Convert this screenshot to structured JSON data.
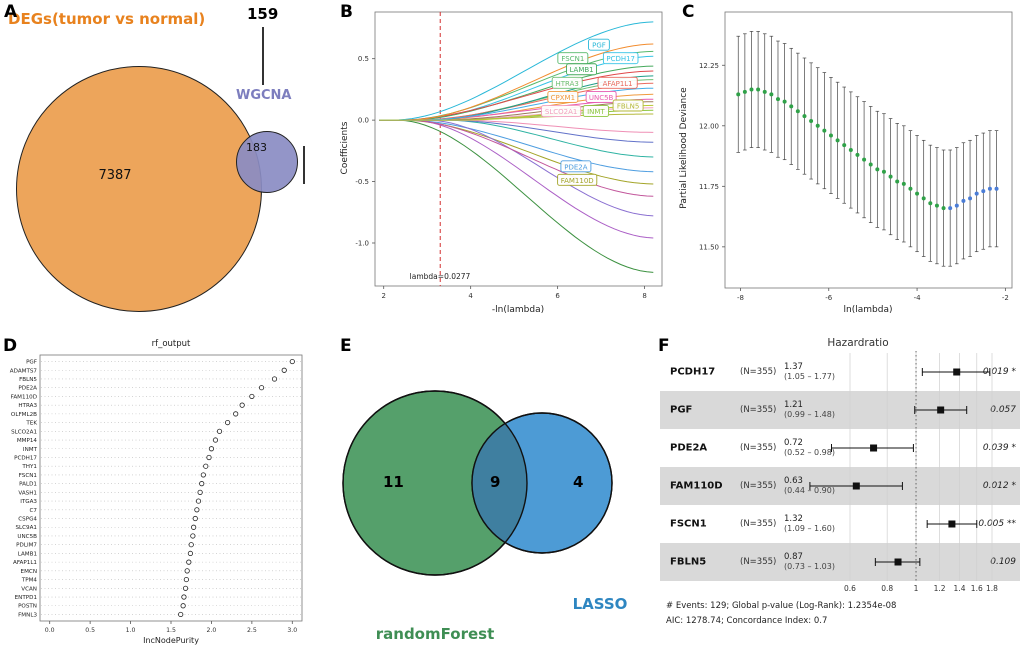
{
  "panel_labels": [
    "A",
    "B",
    "C",
    "D",
    "E",
    "F"
  ],
  "chart_data": [
    {
      "id": "A",
      "type": "venn",
      "title": "DEGs(tumor vs normal)",
      "sets": [
        {
          "label": "DEGs(tumor vs normal)",
          "color": "#EDA55B",
          "text_color": "#E8821E"
        },
        {
          "label": "WGCNA",
          "color": "#8A8CC3",
          "text_color": "#7D7EBE"
        }
      ],
      "counts": {
        "left_only": "7387",
        "overlap": "183",
        "right_only": "159"
      }
    },
    {
      "id": "B",
      "type": "line",
      "xlabel": "-ln(lambda)",
      "ylabel": "Coefficients",
      "x_ticks": [
        2,
        4,
        6,
        8
      ],
      "y_ticks": [
        0.5,
        0.0,
        -0.5,
        -1.0
      ],
      "xlim": [
        1.8,
        8.4
      ],
      "ylim": [
        -1.35,
        0.88
      ],
      "vline": {
        "x": 3.3,
        "color": "#D32F2F",
        "annotation": "lambda=0.0277"
      },
      "series": [
        {
          "name": "PGF",
          "color": "#29B8D8",
          "onset": 2.2,
          "end": 0.8,
          "label": {
            "x": 6.95,
            "y": 0.61
          }
        },
        {
          "name": "PCDH17",
          "color": "#35C3E6",
          "onset": 2.6,
          "end": 0.52,
          "label": {
            "x": 7.45,
            "y": 0.5
          }
        },
        {
          "name": "FSCN1",
          "color": "#57B86B",
          "onset": 2.4,
          "end": 0.56,
          "label": {
            "x": 6.35,
            "y": 0.5
          }
        },
        {
          "name": "LAMB1",
          "color": "#45A95C",
          "onset": 2.5,
          "end": 0.44,
          "label": {
            "x": 6.55,
            "y": 0.41
          }
        },
        {
          "name": "HTRA3",
          "color": "#6FBF73",
          "onset": 2.8,
          "end": 0.33,
          "label": {
            "x": 6.22,
            "y": 0.3
          }
        },
        {
          "name": "AFAP1L1",
          "color": "#E96A5E",
          "onset": 2.7,
          "end": 0.3,
          "label": {
            "x": 7.38,
            "y": 0.3
          }
        },
        {
          "name": "CPXM1",
          "color": "#F09A3E",
          "onset": 2.9,
          "end": 0.21,
          "label": {
            "x": 6.12,
            "y": 0.185
          }
        },
        {
          "name": "UNC5B",
          "color": "#E75BB1",
          "onset": 2.6,
          "end": 0.17,
          "label": {
            "x": 7.0,
            "y": 0.185
          }
        },
        {
          "name": "SLCO2A1",
          "color": "#F2A0C0",
          "onset": 3.1,
          "end": 0.1,
          "label": {
            "x": 6.08,
            "y": 0.07
          }
        },
        {
          "name": "INMT",
          "color": "#8CC63F",
          "onset": 3.3,
          "end": 0.08,
          "label": {
            "x": 6.88,
            "y": 0.07
          }
        },
        {
          "name": "FBLN5",
          "color": "#B5B93B",
          "onset": 3.0,
          "end": 0.05,
          "label": {
            "x": 7.62,
            "y": 0.115
          }
        },
        {
          "name": "PDE2A",
          "color": "#4D9DE0",
          "onset": 2.5,
          "end": -0.42,
          "label": {
            "x": 6.42,
            "y": -0.38
          }
        },
        {
          "name": "FAM110D",
          "color": "#A3A427",
          "onset": 2.4,
          "end": -0.52,
          "label": {
            "x": 6.45,
            "y": -0.49
          }
        },
        {
          "color": "#3C9140",
          "onset": 2.3,
          "end": -1.24
        },
        {
          "color": "#AB5FC6",
          "onset": 2.6,
          "end": -0.96
        },
        {
          "color": "#8A6FD1",
          "onset": 3.0,
          "end": -0.78
        },
        {
          "color": "#C2569B",
          "onset": 2.5,
          "end": -0.62
        },
        {
          "color": "#2FB3A3",
          "onset": 3.4,
          "end": -0.3
        },
        {
          "color": "#E0484B",
          "onset": 2.3,
          "end": 0.4
        },
        {
          "color": "#F28C2E",
          "onset": 2.5,
          "end": 0.62
        },
        {
          "color": "#1F9E89",
          "onset": 3.0,
          "end": 0.36
        },
        {
          "color": "#9C7B5A",
          "onset": 3.2,
          "end": 0.15
        },
        {
          "color": "#6272C9",
          "onset": 3.4,
          "end": -0.18
        },
        {
          "color": "#EF8FB5",
          "onset": 3.6,
          "end": -0.1
        },
        {
          "color": "#43AEE8",
          "onset": 2.8,
          "end": 0.26
        },
        {
          "color": "#B9C934",
          "onset": 3.8,
          "end": 0.12
        }
      ]
    },
    {
      "id": "C",
      "type": "scatter",
      "xlabel": "ln(lambda)",
      "ylabel": "Partial Likelihood Deviance",
      "x_ticks": [
        -8,
        -6,
        -4,
        -2
      ],
      "y_ticks": [
        11.5,
        11.75,
        12.0,
        12.25
      ],
      "xlim": [
        -8.35,
        -1.85
      ],
      "ylim": [
        11.33,
        12.47
      ],
      "errorbar_halfwidth": 0.24,
      "colors": {
        "main": "#2FA148",
        "right": "#4A7CD6"
      },
      "points": [
        [
          -8.05,
          12.13,
          "g"
        ],
        [
          -7.9,
          12.14,
          "g"
        ],
        [
          -7.75,
          12.15,
          "g"
        ],
        [
          -7.6,
          12.15,
          "g"
        ],
        [
          -7.45,
          12.14,
          "g"
        ],
        [
          -7.3,
          12.13,
          "g"
        ],
        [
          -7.15,
          12.11,
          "g"
        ],
        [
          -7.0,
          12.1,
          "g"
        ],
        [
          -6.85,
          12.08,
          "g"
        ],
        [
          -6.7,
          12.06,
          "g"
        ],
        [
          -6.55,
          12.04,
          "g"
        ],
        [
          -6.4,
          12.02,
          "g"
        ],
        [
          -6.25,
          12.0,
          "g"
        ],
        [
          -6.1,
          11.98,
          "g"
        ],
        [
          -5.95,
          11.96,
          "g"
        ],
        [
          -5.8,
          11.94,
          "g"
        ],
        [
          -5.65,
          11.92,
          "g"
        ],
        [
          -5.5,
          11.9,
          "g"
        ],
        [
          -5.35,
          11.88,
          "g"
        ],
        [
          -5.2,
          11.86,
          "g"
        ],
        [
          -5.05,
          11.84,
          "g"
        ],
        [
          -4.9,
          11.82,
          "g"
        ],
        [
          -4.75,
          11.81,
          "g"
        ],
        [
          -4.6,
          11.79,
          "g"
        ],
        [
          -4.45,
          11.77,
          "g"
        ],
        [
          -4.3,
          11.76,
          "g"
        ],
        [
          -4.15,
          11.74,
          "g"
        ],
        [
          -4.0,
          11.72,
          "g"
        ],
        [
          -3.85,
          11.7,
          "g"
        ],
        [
          -3.7,
          11.68,
          "g"
        ],
        [
          -3.55,
          11.67,
          "g"
        ],
        [
          -3.4,
          11.66,
          "g"
        ],
        [
          -3.25,
          11.66,
          "b"
        ],
        [
          -3.1,
          11.67,
          "b"
        ],
        [
          -2.95,
          11.69,
          "b"
        ],
        [
          -2.8,
          11.7,
          "b"
        ],
        [
          -2.65,
          11.72,
          "b"
        ],
        [
          -2.5,
          11.73,
          "b"
        ],
        [
          -2.35,
          11.74,
          "b"
        ],
        [
          -2.2,
          11.74,
          "b"
        ]
      ]
    },
    {
      "id": "D",
      "type": "scatter",
      "title": "rf_output",
      "xlabel": "IncNodePurity",
      "x_ticks": [
        "0.0",
        "0.5",
        "1.0",
        "1.5",
        "2.0",
        "2.5",
        "3.0"
      ],
      "xlim": [
        -0.12,
        3.12
      ],
      "genes": [
        [
          "PGF",
          3.0
        ],
        [
          "ADAMTS7",
          2.9
        ],
        [
          "FBLN5",
          2.78
        ],
        [
          "PDE2A",
          2.62
        ],
        [
          "FAM110D",
          2.5
        ],
        [
          "HTRA3",
          2.38
        ],
        [
          "OLFML2B",
          2.3
        ],
        [
          "TEK",
          2.2
        ],
        [
          "SLCO2A1",
          2.1
        ],
        [
          "MMP14",
          2.05
        ],
        [
          "INMT",
          2.0
        ],
        [
          "PCDH17",
          1.97
        ],
        [
          "THY1",
          1.93
        ],
        [
          "FSCN1",
          1.9
        ],
        [
          "PALD1",
          1.88
        ],
        [
          "VASH1",
          1.86
        ],
        [
          "ITGA3",
          1.84
        ],
        [
          "C7",
          1.82
        ],
        [
          "CSPG4",
          1.8
        ],
        [
          "SLC9A1",
          1.78
        ],
        [
          "UNC5B",
          1.77
        ],
        [
          "PDLIM7",
          1.75
        ],
        [
          "LAMB1",
          1.74
        ],
        [
          "AFAP1L1",
          1.72
        ],
        [
          "EMCN",
          1.7
        ],
        [
          "TPM4",
          1.69
        ],
        [
          "VCAN",
          1.68
        ],
        [
          "ENTPD1",
          1.66
        ],
        [
          "POSTN",
          1.65
        ],
        [
          "FMNL3",
          1.62
        ]
      ]
    },
    {
      "id": "E",
      "type": "venn",
      "sets": [
        {
          "label": "randomForest",
          "color": "#55A06B",
          "text_color": "#3F8E54",
          "count": "11"
        },
        {
          "label": "LASSO",
          "color": "#4D9BD5",
          "text_color": "#2E86C1",
          "count": "4"
        }
      ],
      "overlap_count": "9",
      "overlap_color": "#3F7FA0"
    },
    {
      "id": "F",
      "type": "forest",
      "title": "Hazardratio",
      "axis_ticks": [
        "0.6",
        "0.8",
        "1",
        "1.2",
        "1.4",
        "1.6",
        "1.8"
      ],
      "ref_line": 1,
      "rows": [
        {
          "gene": "PCDH17",
          "n": "(N=355)",
          "est": "1.37",
          "ci": "(1.05 – 1.77)",
          "hr": 1.37,
          "lo": 1.05,
          "hi": 1.77,
          "p": "0.019 *",
          "shaded": false
        },
        {
          "gene": "PGF",
          "n": "(N=355)",
          "est": "1.21",
          "ci": "(0.99 – 1.48)",
          "hr": 1.21,
          "lo": 0.99,
          "hi": 1.48,
          "p": "0.057",
          "shaded": true
        },
        {
          "gene": "PDE2A",
          "n": "(N=355)",
          "est": "0.72",
          "ci": "(0.52 – 0.98)",
          "hr": 0.72,
          "lo": 0.52,
          "hi": 0.98,
          "p": "0.039 *",
          "shaded": false
        },
        {
          "gene": "FAM110D",
          "n": "(N=355)",
          "est": "0.63",
          "ci": "(0.44 – 0.90)",
          "hr": 0.63,
          "lo": 0.44,
          "hi": 0.9,
          "p": "0.012 *",
          "shaded": true
        },
        {
          "gene": "FSCN1",
          "n": "(N=355)",
          "est": "1.32",
          "ci": "(1.09 – 1.60)",
          "hr": 1.32,
          "lo": 1.09,
          "hi": 1.6,
          "p": "0.005 **",
          "shaded": false
        },
        {
          "gene": "FBLN5",
          "n": "(N=355)",
          "est": "0.87",
          "ci": "(0.73 – 1.03)",
          "hr": 0.87,
          "lo": 0.73,
          "hi": 1.03,
          "p": "0.109",
          "shaded": true
        }
      ],
      "footer": [
        "# Events: 129; Global p-value (Log-Rank): 1.2354e-08",
        "AIC: 1278.74; Concordance Index: 0.7"
      ]
    }
  ]
}
